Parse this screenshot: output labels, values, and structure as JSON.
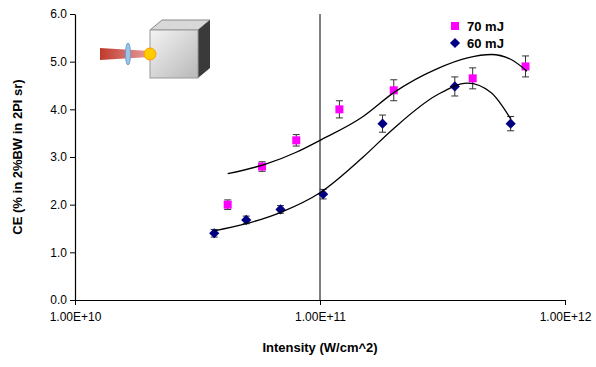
{
  "chart_data": {
    "type": "scatter",
    "x_label": "Intensity (W/cm^2)",
    "y_label": "CE (% in 2%BW in 2PI sr)",
    "log": "x",
    "grid": "x",
    "legend": "top-right",
    "xlim": [
      10000000000,
      1000000000000
    ],
    "ylim": [
      0,
      6
    ],
    "xticks": [
      {
        "value": 10000000000,
        "label": "1.00E+10"
      },
      {
        "value": 100000000000,
        "label": "1.00E+11"
      },
      {
        "value": 1000000000000,
        "label": "1.00E+12"
      }
    ],
    "yticks": [
      {
        "value": 0,
        "label": "0.0"
      },
      {
        "value": 1,
        "label": "1.0"
      },
      {
        "value": 2,
        "label": "2.0"
      },
      {
        "value": 3,
        "label": "3.0"
      },
      {
        "value": 4,
        "label": "4.0"
      },
      {
        "value": 5,
        "label": "5.0"
      },
      {
        "value": 6,
        "label": "6.0"
      }
    ],
    "series": [
      {
        "name": "70 mJ",
        "type": "scatter",
        "marker": "square",
        "color": "#ff00ff",
        "x": [
          42000000000,
          58000000000,
          80000000000,
          120000000000,
          200000000000,
          420000000000,
          690000000000
        ],
        "values": [
          2.0,
          2.8,
          3.35,
          4.0,
          4.4,
          4.65,
          4.9
        ],
        "errors": [
          0.1,
          0.1,
          0.12,
          0.18,
          0.22,
          0.22,
          0.22
        ]
      },
      {
        "name": "60 mJ",
        "type": "scatter",
        "marker": "diamond",
        "color": "#000080",
        "x": [
          37000000000,
          50000000000,
          69000000000,
          103000000000,
          180000000000,
          355000000000,
          600000000000
        ],
        "values": [
          1.4,
          1.68,
          1.9,
          2.22,
          3.7,
          4.48,
          3.7
        ],
        "errors": [
          0.08,
          0.08,
          0.08,
          0.1,
          0.18,
          0.2,
          0.15
        ]
      },
      {
        "type": "line",
        "line_style": "solid",
        "color": "#000000",
        "x": [
          42000000000,
          60000000000,
          80000000000,
          100000000000,
          150000000000,
          200000000000,
          300000000000,
          400000000000,
          500000000000,
          600000000000,
          700000000000
        ],
        "values": [
          2.65,
          2.85,
          3.1,
          3.35,
          3.85,
          4.35,
          4.85,
          5.08,
          5.15,
          5.05,
          4.8
        ]
      },
      {
        "type": "line",
        "line_style": "solid",
        "color": "#000000",
        "x": [
          37000000000,
          50000000000,
          70000000000,
          100000000000,
          150000000000,
          200000000000,
          300000000000,
          400000000000,
          500000000000,
          600000000000
        ],
        "values": [
          1.45,
          1.6,
          1.85,
          2.25,
          3.0,
          3.6,
          4.3,
          4.55,
          4.35,
          3.8
        ]
      }
    ]
  }
}
